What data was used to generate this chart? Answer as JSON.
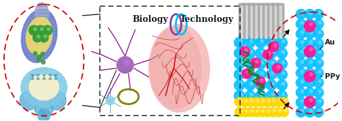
{
  "fig_width": 5.0,
  "fig_height": 1.77,
  "dpi": 100,
  "bg_color": "#ffffff",
  "biology_text": "Biology",
  "technology_text": "Technology",
  "au_label": "Au",
  "ppy_label": "PPy",
  "text_color": "#1a1a1a",
  "cyan_color": "#00BFFF",
  "magenta_color": "#FF1493",
  "gold_color": "#FFD700",
  "gray_color": "#A0A0A0",
  "green_color": "#1A6B1A",
  "purple_color": "#9370DB",
  "blue_ring_color": "#00BFFF",
  "purple_ring_color": "#7B3FA0",
  "olive_ring_color": "#808000",
  "red_dashed": "#CC0000",
  "black_dash": "#222222"
}
